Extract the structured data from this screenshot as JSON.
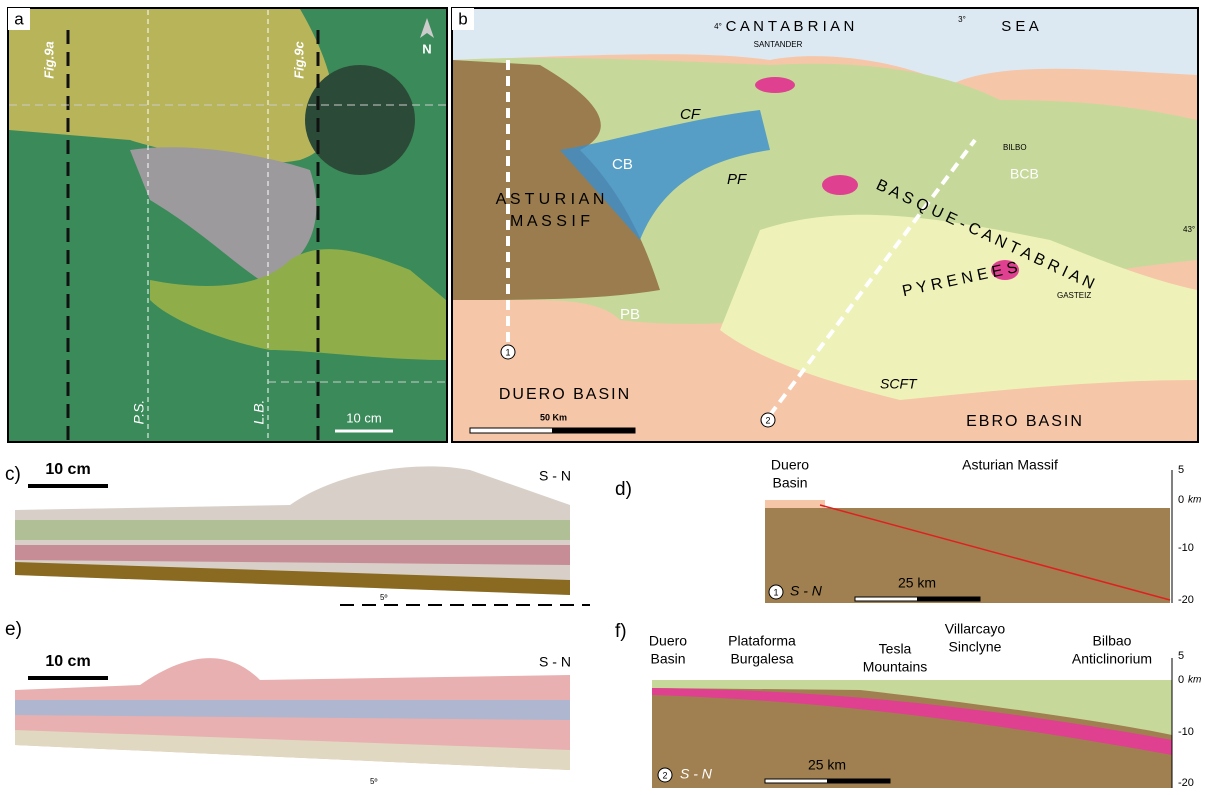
{
  "panels": {
    "a": {
      "label": "a",
      "fig_9a": "Fig.9a",
      "fig_9c": "Fig.9c",
      "north": "N",
      "ps": "P.S.",
      "lb": "L.B.",
      "scale": "10 cm"
    },
    "b": {
      "label": "b",
      "sea": "C A N T A B R I A N",
      "sea_2": "S E A",
      "lon_4": "4°",
      "lon_3": "3°",
      "santander": "SANTANDER",
      "cf": "CF",
      "cb": "CB",
      "pf": "PF",
      "asturian": "A S T U R I A N",
      "massif": "M A S S I F",
      "bcb": "BCB",
      "bilbo": "BILBO",
      "basque": "B A S Q U E - C A N T A B R I A N",
      "pyrenees": "P Y R E N E E S",
      "gasteiz": "GASTEIZ",
      "lat_43": "43°",
      "pb": "PB",
      "duero": "DUERO BASIN",
      "ebro": "EBRO BASIN",
      "scft": "SCFT",
      "scale": "50 Km",
      "section_1": "1",
      "section_2": "2"
    },
    "c": {
      "label": "c)",
      "scale": "10 cm",
      "orientation": "S - N",
      "dip": "5º"
    },
    "d": {
      "label": "d)",
      "duero": "Duero",
      "duero_2": "Basin",
      "asturian": "Asturian Massif",
      "tick_5": "5",
      "tick_0": "0",
      "unit": "km",
      "tick_m10": "-10",
      "tick_m20": "-20",
      "section": "1",
      "orientation": "S - N",
      "scale": "25 km"
    },
    "e": {
      "label": "e)",
      "scale": "10 cm",
      "orientation": "S - N",
      "dip": "5º"
    },
    "f": {
      "label": "f)",
      "duero": "Duero",
      "duero_2": "Basin",
      "plataforma": "Plataforma",
      "burgalesa": "Burgalesa",
      "tesla": "Tesla",
      "mountains": "Mountains",
      "villarcayo": "Villarcayo",
      "sinclyne": "Sinclyne",
      "bilbao": "Bilbao",
      "anticlinorium": "Anticlinorium",
      "tick_5": "5",
      "tick_0": "0",
      "unit": "km",
      "tick_m10": "-10",
      "tick_m20": "-20",
      "section": "2",
      "orientation": "S - N",
      "scale": "25 km"
    }
  }
}
